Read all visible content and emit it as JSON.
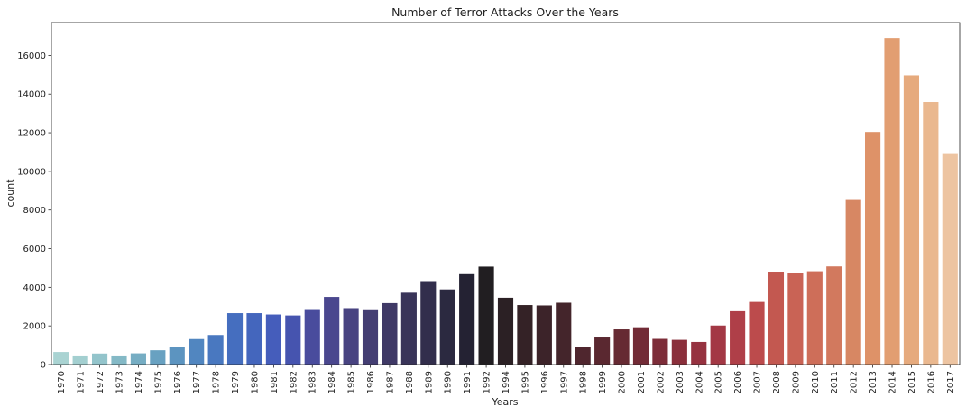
{
  "chart_data": {
    "type": "bar",
    "title": "Number of Terror Attacks Over the Years",
    "xlabel": "Years",
    "ylabel": "count",
    "ylim": [
      0,
      17700
    ],
    "yticks": [
      0,
      2000,
      4000,
      6000,
      8000,
      10000,
      12000,
      14000,
      16000
    ],
    "yticklabels": [
      "0",
      "2000",
      "4000",
      "6000",
      "8000",
      "10000",
      "12000",
      "14000",
      "16000"
    ],
    "grid": false,
    "legend": "none",
    "categories": [
      "1970",
      "1971",
      "1972",
      "1973",
      "1974",
      "1975",
      "1976",
      "1977",
      "1978",
      "1979",
      "1980",
      "1981",
      "1982",
      "1983",
      "1984",
      "1985",
      "1986",
      "1987",
      "1988",
      "1989",
      "1990",
      "1991",
      "1992",
      "1994",
      "1995",
      "1996",
      "1997",
      "1998",
      "1999",
      "2000",
      "2001",
      "2002",
      "2003",
      "2004",
      "2005",
      "2006",
      "2007",
      "2008",
      "2009",
      "2010",
      "2011",
      "2012",
      "2013",
      "2014",
      "2015",
      "2016",
      "2017"
    ],
    "values": [
      650,
      470,
      570,
      470,
      580,
      740,
      920,
      1320,
      1530,
      2660,
      2660,
      2590,
      2540,
      2870,
      3500,
      2920,
      2860,
      3180,
      3720,
      4320,
      3890,
      4680,
      5070,
      3460,
      3080,
      3060,
      3200,
      930,
      1400,
      1820,
      1930,
      1330,
      1280,
      1170,
      2020,
      2760,
      3240,
      4810,
      4720,
      4830,
      5080,
      8520,
      12040,
      16900,
      14970,
      13590,
      10900
    ],
    "colors": [
      "#a9d3d2",
      "#a3cfd0",
      "#93c4cb",
      "#84b9c6",
      "#76adc3",
      "#68a1c1",
      "#5c94c0",
      "#5186c0",
      "#4978c0",
      "#456ebf",
      "#4466bd",
      "#455dbb",
      "#4654af",
      "#494c9d",
      "#4a478e",
      "#484381",
      "#443e73",
      "#3f3966",
      "#393459",
      "#322e4c",
      "#2b2940",
      "#242233",
      "#211e21",
      "#2b2024",
      "#342226",
      "#3c2329",
      "#44252b",
      "#4f262e",
      "#5a2830",
      "#662a33",
      "#722b36",
      "#7d2d39",
      "#8a2f3b",
      "#963240",
      "#a33845",
      "#af3f48",
      "#bc4b4c",
      "#c35850",
      "#c96355",
      "#ce6e59",
      "#d2795e",
      "#d78763",
      "#de9268",
      "#e29e71",
      "#e6aa7d",
      "#eab88f",
      "#edc4a1"
    ]
  }
}
